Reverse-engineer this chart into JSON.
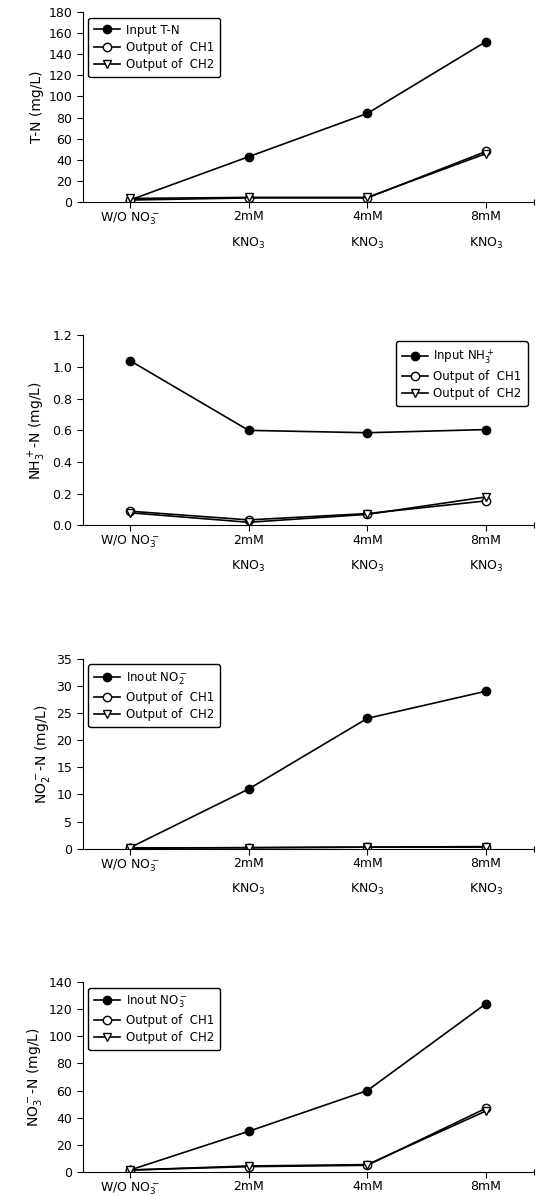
{
  "plot1": {
    "ylabel": "T-N (mg/L)",
    "ylim": [
      0,
      180
    ],
    "yticks": [
      0,
      20,
      40,
      60,
      80,
      100,
      120,
      140,
      160,
      180
    ],
    "legend_label_input": "Input T-N",
    "legend_label_ch1": "Output of  CH1",
    "legend_label_ch2": "Output of  CH2",
    "legend_loc": "upper left",
    "input": [
      2.0,
      43.0,
      84.0,
      152.0
    ],
    "ch1": [
      2.0,
      4.0,
      4.0,
      48.0
    ],
    "ch2": [
      3.5,
      4.5,
      4.5,
      46.0
    ]
  },
  "plot2": {
    "ylabel": "NH$_3^+$-N (mg/L)",
    "ylim": [
      0.0,
      1.2
    ],
    "yticks": [
      0.0,
      0.2,
      0.4,
      0.6,
      0.8,
      1.0,
      1.2
    ],
    "legend_label_input": "Input NH$_3^+$",
    "legend_label_ch1": "Output of  CH1",
    "legend_label_ch2": "Output of  CH2",
    "legend_loc": "upper right",
    "input": [
      1.04,
      0.6,
      0.585,
      0.605
    ],
    "ch1": [
      0.09,
      0.035,
      0.075,
      0.155
    ],
    "ch2": [
      0.08,
      0.02,
      0.07,
      0.18
    ]
  },
  "plot3": {
    "ylabel": "NO$_2^-$-N (mg/L)",
    "ylim": [
      0,
      35
    ],
    "yticks": [
      0,
      5,
      10,
      15,
      20,
      25,
      30,
      35
    ],
    "legend_label_input": "Inout NO$_2^-$",
    "legend_label_ch1": "Output of  CH1",
    "legend_label_ch2": "Output of  CH2",
    "legend_loc": "upper left",
    "input": [
      0.2,
      11.0,
      24.0,
      29.0
    ],
    "ch1": [
      0.1,
      0.2,
      0.3,
      0.3
    ],
    "ch2": [
      0.15,
      0.2,
      0.3,
      0.4
    ]
  },
  "plot4": {
    "ylabel": "NO$_3^-$-N (mg/L)",
    "ylim": [
      0,
      140
    ],
    "yticks": [
      0,
      20,
      40,
      60,
      80,
      100,
      120,
      140
    ],
    "legend_label_input": "Inout NO$_3^-$",
    "legend_label_ch1": "Output of  CH1",
    "legend_label_ch2": "Output of  CH2",
    "legend_loc": "upper left",
    "input": [
      1.5,
      30.0,
      60.0,
      124.0
    ],
    "ch1": [
      1.5,
      4.0,
      5.0,
      47.0
    ],
    "ch2": [
      1.5,
      4.5,
      5.5,
      45.0
    ]
  },
  "linewidth": 1.2,
  "markersize": 6,
  "legend_fontsize": 8.5,
  "tick_fontsize": 9,
  "ylabel_fontsize": 10,
  "background_color": "#ffffff"
}
